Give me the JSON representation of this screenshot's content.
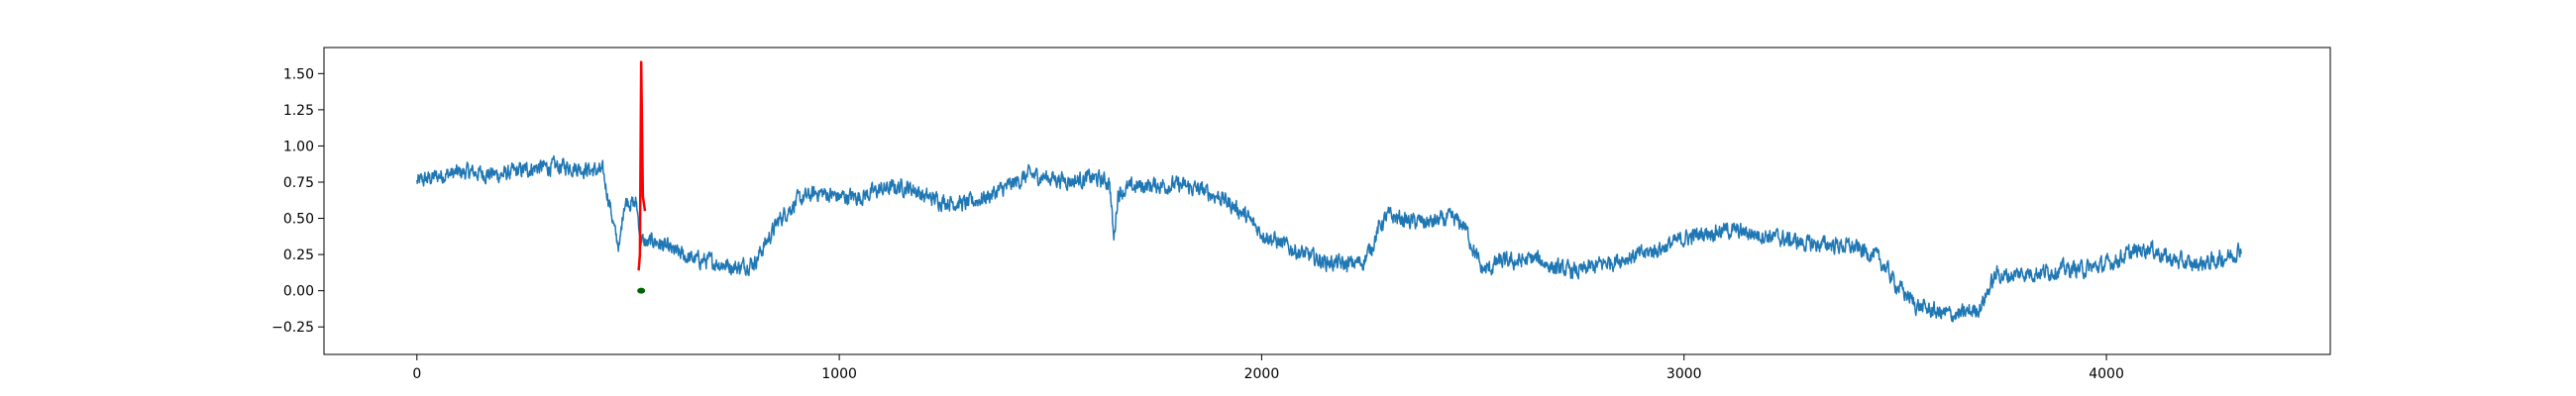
{
  "chart_data": {
    "type": "line",
    "title": "",
    "xlabel": "",
    "ylabel": "",
    "xlim": [
      -220,
      4530
    ],
    "ylim": [
      -0.44,
      1.68
    ],
    "xticks": [
      0,
      1000,
      2000,
      3000,
      4000
    ],
    "xtick_labels": [
      "0",
      "1000",
      "2000",
      "3000",
      "4000"
    ],
    "yticks": [
      -0.25,
      0.0,
      0.25,
      0.5,
      0.75,
      1.0,
      1.25,
      1.5
    ],
    "ytick_labels": [
      "−0.25",
      "0.00",
      "0.25",
      "0.50",
      "0.75",
      "1.00",
      "1.25",
      "1.50"
    ],
    "grid": false,
    "legend": "none",
    "series": [
      {
        "color": "#1f77b4",
        "style": "noisy-line",
        "n_points": 4320,
        "noise_amplitude": 0.045,
        "x": [
          0,
          60,
          120,
          200,
          280,
          360,
          440,
          460,
          470,
          480,
          490,
          500,
          510,
          520,
          530,
          545,
          560,
          600,
          650,
          700,
          760,
          800,
          830,
          860,
          900,
          950,
          1000,
          1050,
          1100,
          1150,
          1180,
          1200,
          1250,
          1300,
          1350,
          1400,
          1450,
          1500,
          1550,
          1600,
          1640,
          1650,
          1660,
          1700,
          1750,
          1800,
          1850,
          1900,
          1950,
          2000,
          2050,
          2100,
          2150,
          2200,
          2240,
          2260,
          2280,
          2300,
          2350,
          2400,
          2450,
          2480,
          2500,
          2520,
          2540,
          2560,
          2600,
          2650,
          2700,
          2750,
          2800,
          2850,
          2900,
          2950,
          3000,
          3050,
          3100,
          3150,
          3200,
          3250,
          3300,
          3350,
          3400,
          3450,
          3480,
          3500,
          3550,
          3600,
          3650,
          3700,
          3720,
          3740,
          3760,
          3800,
          3850,
          3900,
          3950,
          4000,
          4050,
          4100,
          4150,
          4200,
          4250,
          4300,
          4320
        ],
        "y": [
          0.75,
          0.8,
          0.82,
          0.8,
          0.85,
          0.86,
          0.82,
          0.55,
          0.38,
          0.3,
          0.6,
          0.63,
          0.6,
          0.6,
          0.35,
          0.32,
          0.35,
          0.28,
          0.22,
          0.2,
          0.16,
          0.2,
          0.35,
          0.5,
          0.62,
          0.68,
          0.65,
          0.65,
          0.7,
          0.72,
          0.7,
          0.65,
          0.62,
          0.6,
          0.65,
          0.72,
          0.8,
          0.78,
          0.76,
          0.78,
          0.75,
          0.35,
          0.68,
          0.72,
          0.73,
          0.73,
          0.7,
          0.65,
          0.55,
          0.4,
          0.32,
          0.25,
          0.2,
          0.18,
          0.2,
          0.3,
          0.45,
          0.52,
          0.48,
          0.47,
          0.5,
          0.45,
          0.3,
          0.15,
          0.15,
          0.2,
          0.2,
          0.22,
          0.15,
          0.13,
          0.18,
          0.22,
          0.25,
          0.3,
          0.36,
          0.4,
          0.42,
          0.4,
          0.38,
          0.35,
          0.32,
          0.32,
          0.3,
          0.25,
          0.15,
          0.05,
          -0.1,
          -0.15,
          -0.17,
          -0.12,
          0.0,
          0.12,
          0.1,
          0.12,
          0.13,
          0.15,
          0.15,
          0.18,
          0.25,
          0.3,
          0.22,
          0.18,
          0.2,
          0.25,
          0.3
        ]
      },
      {
        "color": "#ff0000",
        "style": "line",
        "x": [
          525,
          528,
          531,
          535,
          540
        ],
        "y": [
          0.14,
          0.25,
          1.58,
          0.65,
          0.55
        ]
      },
      {
        "color": "#006400",
        "style": "marker",
        "x": [
          531
        ],
        "y": [
          0.0
        ]
      }
    ]
  }
}
